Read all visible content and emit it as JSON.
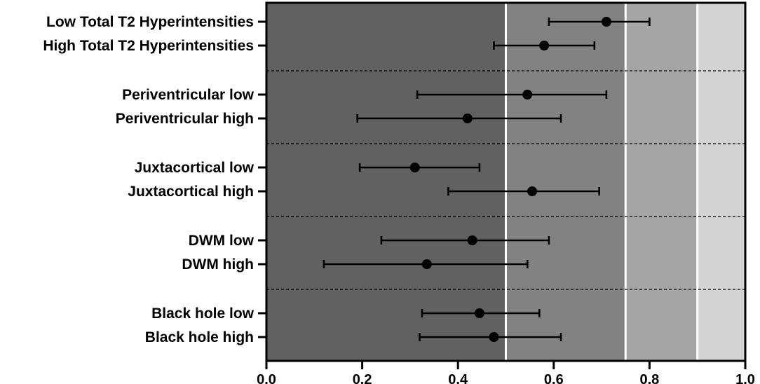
{
  "chart_data": {
    "type": "forest",
    "title": "",
    "xlabel": "",
    "ylabel": "",
    "xlim": [
      0.0,
      1.0
    ],
    "xticks": [
      "0.0",
      "0.2",
      "0.4",
      "0.6",
      "0.8",
      "1.0"
    ],
    "tick_values": [
      0.0,
      0.2,
      0.4,
      0.6,
      0.8,
      1.0
    ],
    "background_bands": [
      {
        "from": 0.0,
        "to": 0.5,
        "color": "#616161"
      },
      {
        "from": 0.5,
        "to": 0.75,
        "color": "#828282"
      },
      {
        "from": 0.75,
        "to": 0.9,
        "color": "#a5a5a5"
      },
      {
        "from": 0.9,
        "to": 1.0,
        "color": "#d3d3d3"
      }
    ],
    "band_separator_color": "#ffffff",
    "groups": [
      {
        "rows": [
          {
            "label": "Low Total T2 Hyperintensities",
            "value": 0.71,
            "low": 0.59,
            "high": 0.8
          },
          {
            "label": "High Total T2 Hyperintensities",
            "value": 0.58,
            "low": 0.475,
            "high": 0.685
          }
        ]
      },
      {
        "rows": [
          {
            "label": "Periventricular low",
            "value": 0.545,
            "low": 0.315,
            "high": 0.71
          },
          {
            "label": "Periventricular high",
            "value": 0.42,
            "low": 0.19,
            "high": 0.615
          }
        ]
      },
      {
        "rows": [
          {
            "label": "Juxtacortical low",
            "value": 0.31,
            "low": 0.195,
            "high": 0.445
          },
          {
            "label": "Juxtacortical high",
            "value": 0.555,
            "low": 0.38,
            "high": 0.695
          }
        ]
      },
      {
        "rows": [
          {
            "label": "DWM low",
            "value": 0.43,
            "low": 0.24,
            "high": 0.59
          },
          {
            "label": "DWM high",
            "value": 0.335,
            "low": 0.12,
            "high": 0.545
          }
        ]
      },
      {
        "rows": [
          {
            "label": "Black hole low",
            "value": 0.445,
            "low": 0.325,
            "high": 0.57
          },
          {
            "label": "Black hole high",
            "value": 0.475,
            "low": 0.32,
            "high": 0.615
          }
        ]
      }
    ]
  }
}
